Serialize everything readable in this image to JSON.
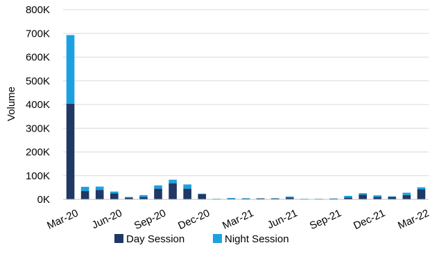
{
  "chart_data": {
    "type": "bar",
    "stacked": true,
    "title": "",
    "xlabel": "",
    "ylabel": "Volume",
    "ylim": [
      0,
      800000
    ],
    "grid": true,
    "legend_position": "bottom",
    "y_ticks": [
      "0K",
      "100K",
      "200K",
      "300K",
      "400K",
      "500K",
      "600K",
      "700K",
      "800K"
    ],
    "x_tick_labels": [
      "Mar-20",
      "Jun-20",
      "Sep-20",
      "Dec-20",
      "Mar-21",
      "Jun-21",
      "Sep-21",
      "Dec-21",
      "Mar-22"
    ],
    "categories": [
      "Mar-20",
      "Apr-20",
      "May-20",
      "Jun-20",
      "Jul-20",
      "Aug-20",
      "Sep-20",
      "Oct-20",
      "Nov-20",
      "Dec-20",
      "Jan-21",
      "Feb-21",
      "Mar-21",
      "Apr-21",
      "May-21",
      "Jun-21",
      "Jul-21",
      "Aug-21",
      "Sep-21",
      "Oct-21",
      "Nov-21",
      "Dec-21",
      "Jan-22",
      "Feb-22",
      "Mar-22"
    ],
    "series": [
      {
        "name": "Day Session",
        "color": "#1f3864",
        "values": [
          403000,
          35000,
          40000,
          25000,
          8000,
          10000,
          45000,
          68000,
          45000,
          22000,
          2000,
          3000,
          3000,
          4000,
          4000,
          8000,
          2000,
          2000,
          3000,
          8000,
          20000,
          10000,
          10000,
          18000,
          43000
        ]
      },
      {
        "name": "Night Session",
        "color": "#1ba1e2",
        "values": [
          290000,
          18000,
          14000,
          8000,
          2000,
          8000,
          14000,
          15000,
          18000,
          2000,
          1000,
          3000,
          2000,
          1000,
          1000,
          4000,
          1000,
          1000,
          1000,
          7000,
          6000,
          7000,
          3000,
          10000,
          8000
        ]
      }
    ]
  }
}
